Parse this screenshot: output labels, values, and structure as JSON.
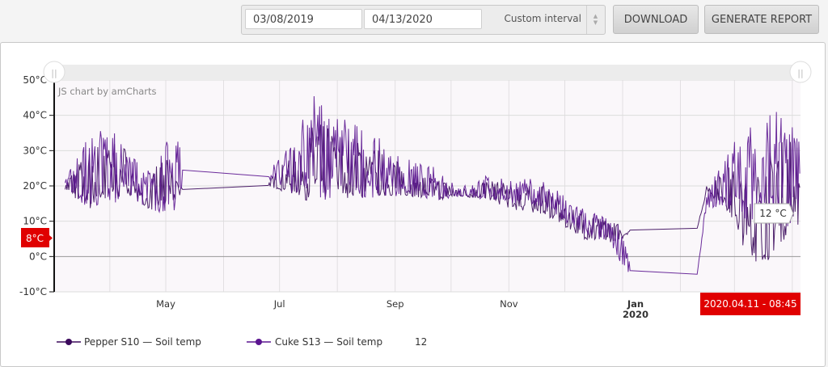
{
  "toolbar": {
    "start_date": "03/08/2019",
    "end_date": "04/13/2020",
    "interval": "Custom interval",
    "download_label": "DOWNLOAD",
    "report_label": "GENERATE REPORT"
  },
  "chart_data": {
    "type": "line",
    "watermark": "JS chart by amCharts",
    "ylim": [
      -10,
      50
    ],
    "yticks": [
      "-10°C",
      "0°C",
      "10°C",
      "20°C",
      "30°C",
      "40°C",
      "50°C"
    ],
    "x_range": [
      "2019-03-02",
      "2020-04-06"
    ],
    "x_start_date": "2019-03-08",
    "xticks": [
      {
        "day": 54,
        "label": "May",
        "sub": ""
      },
      {
        "day": 115,
        "label": "Jul",
        "sub": ""
      },
      {
        "day": 177,
        "label": "Sep",
        "sub": ""
      },
      {
        "day": 238,
        "label": "Nov",
        "sub": ""
      },
      {
        "day": 299,
        "label": "Jan",
        "sub": "2020"
      }
    ],
    "month_grid_days": [
      24,
      54,
      85,
      115,
      146,
      177,
      207,
      238,
      268,
      299,
      330,
      359,
      390
    ],
    "cursor": {
      "y_label": "8°C",
      "date_label": "2020.04.11 - 08:45",
      "balloon": "12 °C"
    },
    "series": [
      {
        "name": "Pepper S10 — Soil temp",
        "color": "#3b0a5c",
        "envelope": [
          [
            0,
            19,
            21
          ],
          [
            12,
            13,
            30
          ],
          [
            24,
            14,
            34
          ],
          [
            33,
            18,
            31
          ],
          [
            43,
            14,
            16
          ],
          [
            51,
            12,
            30
          ],
          [
            63,
            17,
            21
          ],
          [
            109,
            20,
            21
          ],
          [
            119,
            18,
            28
          ],
          [
            134,
            15,
            38
          ],
          [
            146,
            17,
            36
          ],
          [
            155,
            16,
            33
          ],
          [
            170,
            17,
            30
          ],
          [
            186,
            17,
            24
          ],
          [
            201,
            16,
            22
          ],
          [
            211,
            17,
            19
          ],
          [
            226,
            16,
            22
          ],
          [
            242,
            13,
            20
          ],
          [
            257,
            12,
            20
          ],
          [
            268,
            8,
            15
          ],
          [
            282,
            4,
            12
          ],
          [
            292,
            4,
            10
          ],
          [
            299,
            5,
            9
          ],
          [
            303,
            7,
            8
          ],
          [
            339,
            8,
            8
          ],
          [
            344,
            18,
            20
          ],
          [
            354,
            14,
            26
          ],
          [
            368,
            -2,
            22
          ],
          [
            378,
            -1,
            30
          ],
          [
            390,
            8,
            35
          ],
          [
            394,
            9,
            30
          ]
        ]
      },
      {
        "name": "Cuke S13 — Soil temp",
        "color": "#5b1590",
        "envelope": [
          [
            0,
            20,
            22
          ],
          [
            12,
            13,
            35
          ],
          [
            24,
            14,
            38
          ],
          [
            33,
            18,
            36
          ],
          [
            43,
            14,
            23
          ],
          [
            51,
            12,
            32
          ],
          [
            63,
            13,
            36
          ],
          [
            109,
            22,
            25
          ],
          [
            119,
            18,
            35
          ],
          [
            134,
            15,
            46
          ],
          [
            146,
            17,
            45
          ],
          [
            155,
            16,
            38
          ],
          [
            170,
            17,
            33
          ],
          [
            186,
            17,
            27
          ],
          [
            201,
            16,
            25
          ],
          [
            211,
            17,
            20
          ],
          [
            226,
            16,
            23
          ],
          [
            242,
            15,
            22
          ],
          [
            257,
            14,
            22
          ],
          [
            268,
            9,
            17
          ],
          [
            282,
            5,
            13
          ],
          [
            292,
            4,
            11
          ],
          [
            299,
            -3,
            9
          ],
          [
            303,
            -6,
            -2
          ],
          [
            339,
            -5,
            -5
          ],
          [
            344,
            14,
            17
          ],
          [
            354,
            13,
            31
          ],
          [
            368,
            10,
            39
          ],
          [
            378,
            8,
            45
          ],
          [
            390,
            8,
            38
          ],
          [
            394,
            10,
            37
          ]
        ],
        "legend_value": "12"
      }
    ]
  }
}
